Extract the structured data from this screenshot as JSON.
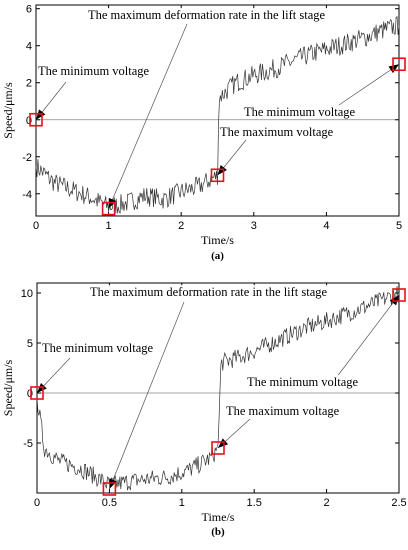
{
  "chart_data": [
    {
      "type": "line",
      "caption": "(a)",
      "xlabel": "Time/s",
      "ylabel": "Speed/μm/s",
      "xlim": [
        0,
        5
      ],
      "ylim": [
        -5.2,
        6.2
      ],
      "xticks": [
        "0",
        "1",
        "2",
        "3",
        "4",
        "5"
      ],
      "xtick_values": [
        0,
        1,
        2,
        3,
        4,
        5
      ],
      "yticks": [
        "-4",
        "-2",
        "0",
        "2",
        "4",
        "6"
      ],
      "ytick_values": [
        -4,
        -2,
        0,
        2,
        4,
        6
      ],
      "zero_line": true,
      "series": [
        {
          "x": [
            0,
            0.25,
            0.5,
            0.75,
            1.0,
            1.25,
            1.5,
            1.75,
            2.0,
            2.25,
            2.5,
            2.52,
            2.75,
            3.0,
            3.25,
            3.5,
            3.75,
            4.0,
            4.25,
            4.5,
            4.75,
            5.0
          ],
          "y": [
            -2.5,
            -3.4,
            -3.8,
            -4.2,
            -4.7,
            -4.5,
            -4.1,
            -4.3,
            -3.9,
            -3.6,
            -3.0,
            1.2,
            2.0,
            2.4,
            2.7,
            3.1,
            3.5,
            3.8,
            4.1,
            4.4,
            4.8,
            5.1
          ],
          "noise": 0.55
        }
      ],
      "markers": [
        {
          "x": 0,
          "y": 0
        },
        {
          "x": 1,
          "y": -4.8
        },
        {
          "x": 2.5,
          "y": -3.0
        },
        {
          "x": 5,
          "y": 3.0
        }
      ],
      "annotations": [
        {
          "text": "The maximum deformation rate in the lift stage",
          "x": 1,
          "y": -4.8
        },
        {
          "text": "The minimum voltage",
          "x": 0,
          "y": 0
        },
        {
          "text": "The minimum voltage",
          "x": 5,
          "y": 3.0
        },
        {
          "text": "The maximum voltage",
          "x": 2.5,
          "y": -3.0
        }
      ]
    },
    {
      "type": "line",
      "caption": "(b)",
      "xlabel": "Time/s",
      "ylabel": "Speed/μm/s",
      "xlim": [
        0,
        2.5
      ],
      "ylim": [
        -10,
        11
      ],
      "xticks": [
        "0",
        "0.5",
        "1",
        "1.5",
        "2",
        "2.5"
      ],
      "xtick_values": [
        0,
        0.5,
        1,
        1.5,
        2,
        2.5
      ],
      "yticks": [
        "-5",
        "0",
        "5",
        "10"
      ],
      "ytick_values": [
        -5,
        0,
        5,
        10
      ],
      "zero_line": true,
      "series": [
        {
          "x": [
            0,
            0.05,
            0.15,
            0.3,
            0.5,
            0.7,
            0.9,
            1.05,
            1.2,
            1.25,
            1.27,
            1.4,
            1.55,
            1.7,
            1.85,
            2.0,
            2.15,
            2.3,
            2.5
          ],
          "y": [
            -0.5,
            -5.5,
            -6.8,
            -7.5,
            -9.2,
            -8.7,
            -8.4,
            -7.7,
            -6.5,
            -5.5,
            3.0,
            3.6,
            4.5,
            5.5,
            6.5,
            7.2,
            8.0,
            8.8,
            10.0
          ],
          "noise": 0.9
        }
      ],
      "markers": [
        {
          "x": 0,
          "y": 0
        },
        {
          "x": 0.5,
          "y": -9.6
        },
        {
          "x": 1.25,
          "y": -5.5
        },
        {
          "x": 2.5,
          "y": 9.8
        }
      ],
      "annotations": [
        {
          "text": "The maximum deformation rate in the lift stage",
          "x": 0.5,
          "y": -9.6
        },
        {
          "text": "The minimum voltage",
          "x": 0,
          "y": 0
        },
        {
          "text": "The minimum voltage",
          "x": 2.5,
          "y": 9.8
        },
        {
          "text": "The maximum voltage",
          "x": 1.25,
          "y": -5.5
        }
      ]
    }
  ]
}
